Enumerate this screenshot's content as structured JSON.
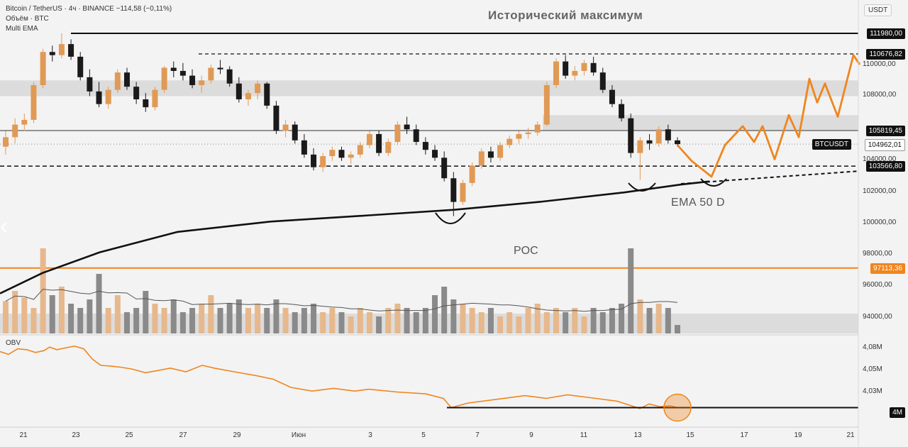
{
  "header": {
    "symbol_line": "Bitcoin / TetherUS · 4ч · BINANCE  −114,58 (−0,11%)",
    "volume_line": "Объём · BTC",
    "ema_line": "Multi EMA"
  },
  "annotations": {
    "ath_title": "Исторический максимум",
    "ema_label": "EMA 50 D",
    "poc_label": "POC",
    "obv_label": "OBV"
  },
  "scale": {
    "currency": "USDT",
    "ticks": [
      "110000,00",
      "108000,00",
      "104000,00",
      "102000,00",
      "100000,00",
      "98000,00",
      "96000,00",
      "94000,00"
    ],
    "obv_ticks": [
      "4,08M",
      "4,05M",
      "4,03M"
    ]
  },
  "price_labels": {
    "ath": "111980,00",
    "resistance": "110676,82",
    "mid": "105819,45",
    "last_name": "BTCUSDT",
    "last": "104962,01",
    "support": "103566,80",
    "poc": "97113,36",
    "obv_level": "4M"
  },
  "colors": {
    "bull": "#e09a55",
    "bear": "#1a1a1a",
    "orange": "#f0851e",
    "volume_bull": "#e6b88c",
    "volume_bear": "#8a8a8a",
    "zone": "#dcdcdc"
  },
  "x_axis": {
    "labels": [
      "21",
      "23",
      "25",
      "27",
      "29",
      "Июн",
      "3",
      "5",
      "7",
      "9",
      "11",
      "13",
      "15",
      "17",
      "19",
      "21"
    ]
  },
  "chart_data": {
    "type": "candlestick",
    "title": "",
    "y_scale": [
      92000,
      112000
    ],
    "levels": [
      111980,
      110676.82,
      105819.45,
      103566.8,
      97113.36
    ],
    "zones": [
      [
        108000,
        109000
      ],
      [
        105800,
        106800
      ],
      [
        93000,
        94000
      ]
    ],
    "ema_50d": [
      [
        0,
        95500
      ],
      [
        60,
        96800
      ],
      [
        140,
        98100
      ],
      [
        250,
        99400
      ],
      [
        380,
        100050
      ],
      [
        520,
        100450
      ],
      [
        640,
        100800
      ],
      [
        760,
        101300
      ],
      [
        880,
        101900
      ],
      [
        960,
        102400
      ],
      [
        1000,
        102600
      ]
    ],
    "candles": [
      [
        104800,
        105800,
        104300,
        105400
      ],
      [
        105400,
        106600,
        105000,
        106200
      ],
      [
        106200,
        106900,
        105800,
        106500
      ],
      [
        106500,
        108900,
        106300,
        108700
      ],
      [
        108700,
        111000,
        108500,
        110800
      ],
      [
        110800,
        111200,
        110200,
        110600
      ],
      [
        110600,
        111980,
        110400,
        111300
      ],
      [
        111300,
        111600,
        110300,
        110500
      ],
      [
        110500,
        110800,
        109000,
        109200
      ],
      [
        109200,
        109700,
        108000,
        108300
      ],
      [
        108300,
        108900,
        107300,
        107500
      ],
      [
        107500,
        108600,
        107200,
        108400
      ],
      [
        108400,
        109700,
        108200,
        109500
      ],
      [
        109500,
        109800,
        108400,
        108600
      ],
      [
        108600,
        108900,
        107500,
        107800
      ],
      [
        107800,
        108200,
        107000,
        107300
      ],
      [
        107300,
        108600,
        107100,
        108400
      ],
      [
        108400,
        109900,
        108200,
        109800
      ],
      [
        109800,
        110200,
        109200,
        109600
      ],
      [
        109600,
        110100,
        109000,
        109300
      ],
      [
        109300,
        109700,
        108500,
        108700
      ],
      [
        108700,
        109300,
        108200,
        109000
      ],
      [
        109000,
        110000,
        108800,
        109800
      ],
      [
        109800,
        110300,
        109400,
        109700
      ],
      [
        109700,
        109900,
        108600,
        108800
      ],
      [
        108800,
        109200,
        107600,
        107800
      ],
      [
        107800,
        108400,
        107400,
        108200
      ],
      [
        108200,
        109000,
        107800,
        108800
      ],
      [
        108800,
        108900,
        107200,
        107400
      ],
      [
        107400,
        107700,
        105600,
        105800
      ],
      [
        105800,
        106500,
        105400,
        106200
      ],
      [
        106200,
        106400,
        105000,
        105200
      ],
      [
        105200,
        105600,
        104100,
        104300
      ],
      [
        104300,
        104700,
        103300,
        103500
      ],
      [
        103500,
        104400,
        103200,
        104200
      ],
      [
        104200,
        104800,
        103900,
        104600
      ],
      [
        104600,
        104800,
        103900,
        104100
      ],
      [
        104100,
        104500,
        103700,
        104300
      ],
      [
        104300,
        105100,
        104100,
        104900
      ],
      [
        104900,
        105800,
        104700,
        105600
      ],
      [
        105600,
        105800,
        104200,
        104400
      ],
      [
        104400,
        105300,
        104200,
        105100
      ],
      [
        105100,
        106400,
        104900,
        106200
      ],
      [
        106200,
        106700,
        105600,
        105900
      ],
      [
        105900,
        106200,
        104900,
        105100
      ],
      [
        105100,
        105400,
        104300,
        104600
      ],
      [
        104600,
        104900,
        103900,
        104100
      ],
      [
        104100,
        104500,
        102600,
        102800
      ],
      [
        102800,
        103200,
        100400,
        101300
      ],
      [
        101300,
        102700,
        101100,
        102500
      ],
      [
        102500,
        103800,
        102300,
        103600
      ],
      [
        103600,
        104700,
        103400,
        104500
      ],
      [
        104500,
        104800,
        103800,
        104100
      ],
      [
        104100,
        105100,
        103900,
        104900
      ],
      [
        104900,
        105500,
        104700,
        105300
      ],
      [
        105300,
        105800,
        105000,
        105600
      ],
      [
        105600,
        106000,
        105300,
        105700
      ],
      [
        105700,
        106400,
        105500,
        106200
      ],
      [
        106200,
        108900,
        106100,
        108700
      ],
      [
        108700,
        110400,
        108500,
        110200
      ],
      [
        110200,
        110600,
        109100,
        109300
      ],
      [
        109300,
        109900,
        109000,
        109600
      ],
      [
        109600,
        110300,
        109300,
        110100
      ],
      [
        110100,
        110500,
        109300,
        109500
      ],
      [
        109500,
        109800,
        108200,
        108400
      ],
      [
        108400,
        108700,
        107300,
        107500
      ],
      [
        107500,
        107800,
        106400,
        106600
      ],
      [
        106600,
        106900,
        104100,
        104400
      ],
      [
        104400,
        105400,
        102700,
        105200
      ],
      [
        105200,
        105600,
        104600,
        105000
      ],
      [
        105000,
        106100,
        104800,
        105900
      ],
      [
        105900,
        106200,
        105000,
        105200
      ],
      [
        105200,
        105400,
        104800,
        104962
      ]
    ],
    "volumes": [
      0.38,
      0.5,
      0.42,
      0.3,
      1.0,
      0.45,
      0.55,
      0.35,
      0.3,
      0.4,
      0.7,
      0.3,
      0.45,
      0.25,
      0.3,
      0.5,
      0.35,
      0.3,
      0.4,
      0.25,
      0.3,
      0.35,
      0.45,
      0.3,
      0.35,
      0.4,
      0.3,
      0.35,
      0.3,
      0.4,
      0.3,
      0.25,
      0.3,
      0.35,
      0.25,
      0.3,
      0.25,
      0.2,
      0.3,
      0.25,
      0.2,
      0.3,
      0.35,
      0.3,
      0.25,
      0.3,
      0.45,
      0.55,
      0.4,
      0.35,
      0.3,
      0.25,
      0.3,
      0.2,
      0.25,
      0.2,
      0.3,
      0.35,
      0.25,
      0.3,
      0.25,
      0.3,
      0.2,
      0.3,
      0.25,
      0.3,
      0.35,
      1.0,
      0.4,
      0.3,
      0.35,
      0.3,
      0.1
    ],
    "forecast_path": [
      [
        955,
        104900
      ],
      [
        975,
        103900
      ],
      [
        1003,
        102900
      ],
      [
        1022,
        104900
      ],
      [
        1047,
        106100
      ],
      [
        1063,
        105100
      ],
      [
        1075,
        106100
      ],
      [
        1092,
        104000
      ],
      [
        1112,
        106800
      ],
      [
        1126,
        105400
      ],
      [
        1141,
        109100
      ],
      [
        1152,
        107600
      ],
      [
        1163,
        108800
      ],
      [
        1181,
        106700
      ],
      [
        1203,
        110600
      ],
      [
        1212,
        110000
      ]
    ],
    "obv": [
      [
        0,
        4.073
      ],
      [
        12,
        4.07
      ],
      [
        25,
        4.076
      ],
      [
        38,
        4.075
      ],
      [
        50,
        4.072
      ],
      [
        62,
        4.074
      ],
      [
        70,
        4.078
      ],
      [
        80,
        4.075
      ],
      [
        92,
        4.077
      ],
      [
        105,
        4.079
      ],
      [
        118,
        4.076
      ],
      [
        130,
        4.065
      ],
      [
        142,
        4.058
      ],
      [
        158,
        4.057
      ],
      [
        170,
        4.056
      ],
      [
        186,
        4.054
      ],
      [
        205,
        4.05
      ],
      [
        220,
        4.052
      ],
      [
        240,
        4.055
      ],
      [
        262,
        4.051
      ],
      [
        285,
        4.058
      ],
      [
        302,
        4.055
      ],
      [
        330,
        4.051
      ],
      [
        360,
        4.047
      ],
      [
        385,
        4.043
      ],
      [
        410,
        4.034
      ],
      [
        440,
        4.03
      ],
      [
        470,
        4.033
      ],
      [
        500,
        4.03
      ],
      [
        520,
        4.032
      ],
      [
        560,
        4.029
      ],
      [
        600,
        4.027
      ],
      [
        625,
        4.022
      ],
      [
        636,
        4.012
      ],
      [
        660,
        4.017
      ],
      [
        700,
        4.021
      ],
      [
        740,
        4.025
      ],
      [
        770,
        4.022
      ],
      [
        800,
        4.026
      ],
      [
        840,
        4.022
      ],
      [
        870,
        4.019
      ],
      [
        890,
        4.014
      ],
      [
        902,
        4.011
      ],
      [
        915,
        4.016
      ],
      [
        930,
        4.013
      ],
      [
        945,
        4.014
      ],
      [
        955,
        4.012
      ]
    ],
    "obv_level": 4.012,
    "obv_scale": [
      4.0,
      4.085
    ]
  }
}
